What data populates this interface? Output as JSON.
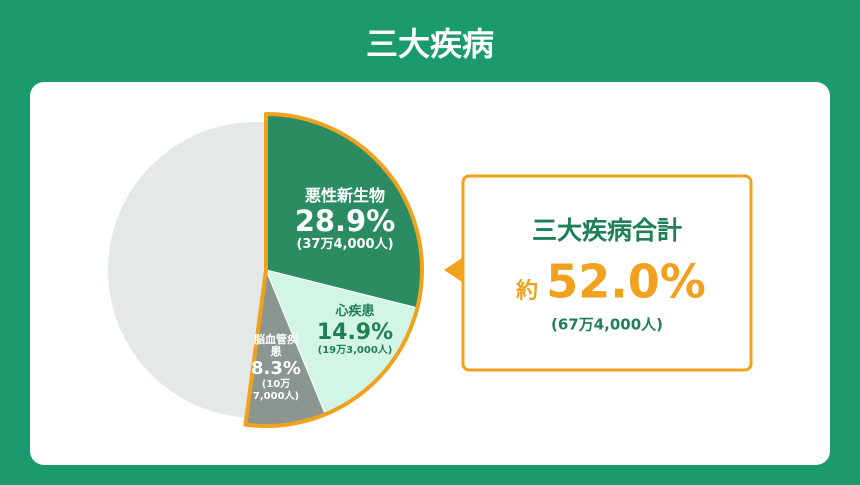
{
  "chart_data": {
    "type": "pie",
    "title": "三大疾病",
    "categories": [
      "悪性新生物",
      "心疾患",
      "脳血管疾患"
    ],
    "values": [
      28.9,
      14.9,
      8.3
    ],
    "value_labels": [
      "28.9%",
      "14.9%",
      "8.3%"
    ],
    "counts": [
      "(37万4,000人)",
      "(19万3,000人)",
      "(10万7,000人)"
    ],
    "colors": [
      "#2b8c63",
      "#d3f5e5",
      "#8b9690"
    ],
    "rest_color": "#e4e9e7",
    "highlight_color": "#f0a21f",
    "total": {
      "label": "三大疾病合計",
      "prefix": "約",
      "value_label": "52.0%",
      "count": "(67万4,000人)"
    }
  }
}
